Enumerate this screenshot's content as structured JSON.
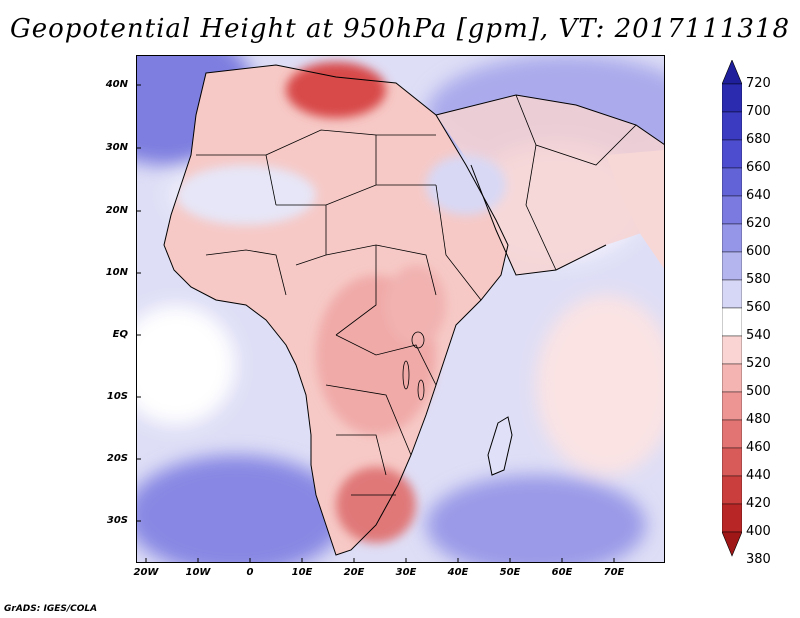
{
  "title": "Geopotential Height at 950hPa [gpm], VT: 2017111318",
  "credit": "GrADS: IGES/COLA",
  "map": {
    "region": "Africa and Arabian Peninsula",
    "lat_labels": [
      "40N",
      "30N",
      "20N",
      "10N",
      "EQ",
      "10S",
      "20S",
      "30S"
    ],
    "lon_labels": [
      "20W",
      "10W",
      "0",
      "10E",
      "20E",
      "30E",
      "40E",
      "50E",
      "60E",
      "70E"
    ],
    "ocean_color": "#dadaf5",
    "land_color": "#f6c9c6",
    "high_color": "#8080e2",
    "low_color": "#d84040"
  },
  "colorbar": {
    "levels": [
      "720",
      "700",
      "680",
      "660",
      "640",
      "620",
      "600",
      "580",
      "560",
      "540",
      "520",
      "500",
      "480",
      "460",
      "440",
      "420",
      "400",
      "380"
    ],
    "colors": [
      "#1f1f9c",
      "#2b2bb0",
      "#3b3bc2",
      "#4d4dcf",
      "#6363d8",
      "#7a7ae0",
      "#9696e8",
      "#b4b4ef",
      "#d6d6f6",
      "#ffffff",
      "#fad4d2",
      "#f4b5b2",
      "#ec9593",
      "#e27574",
      "#d85b59",
      "#ca3f3d",
      "#b82626",
      "#a01717"
    ]
  }
}
